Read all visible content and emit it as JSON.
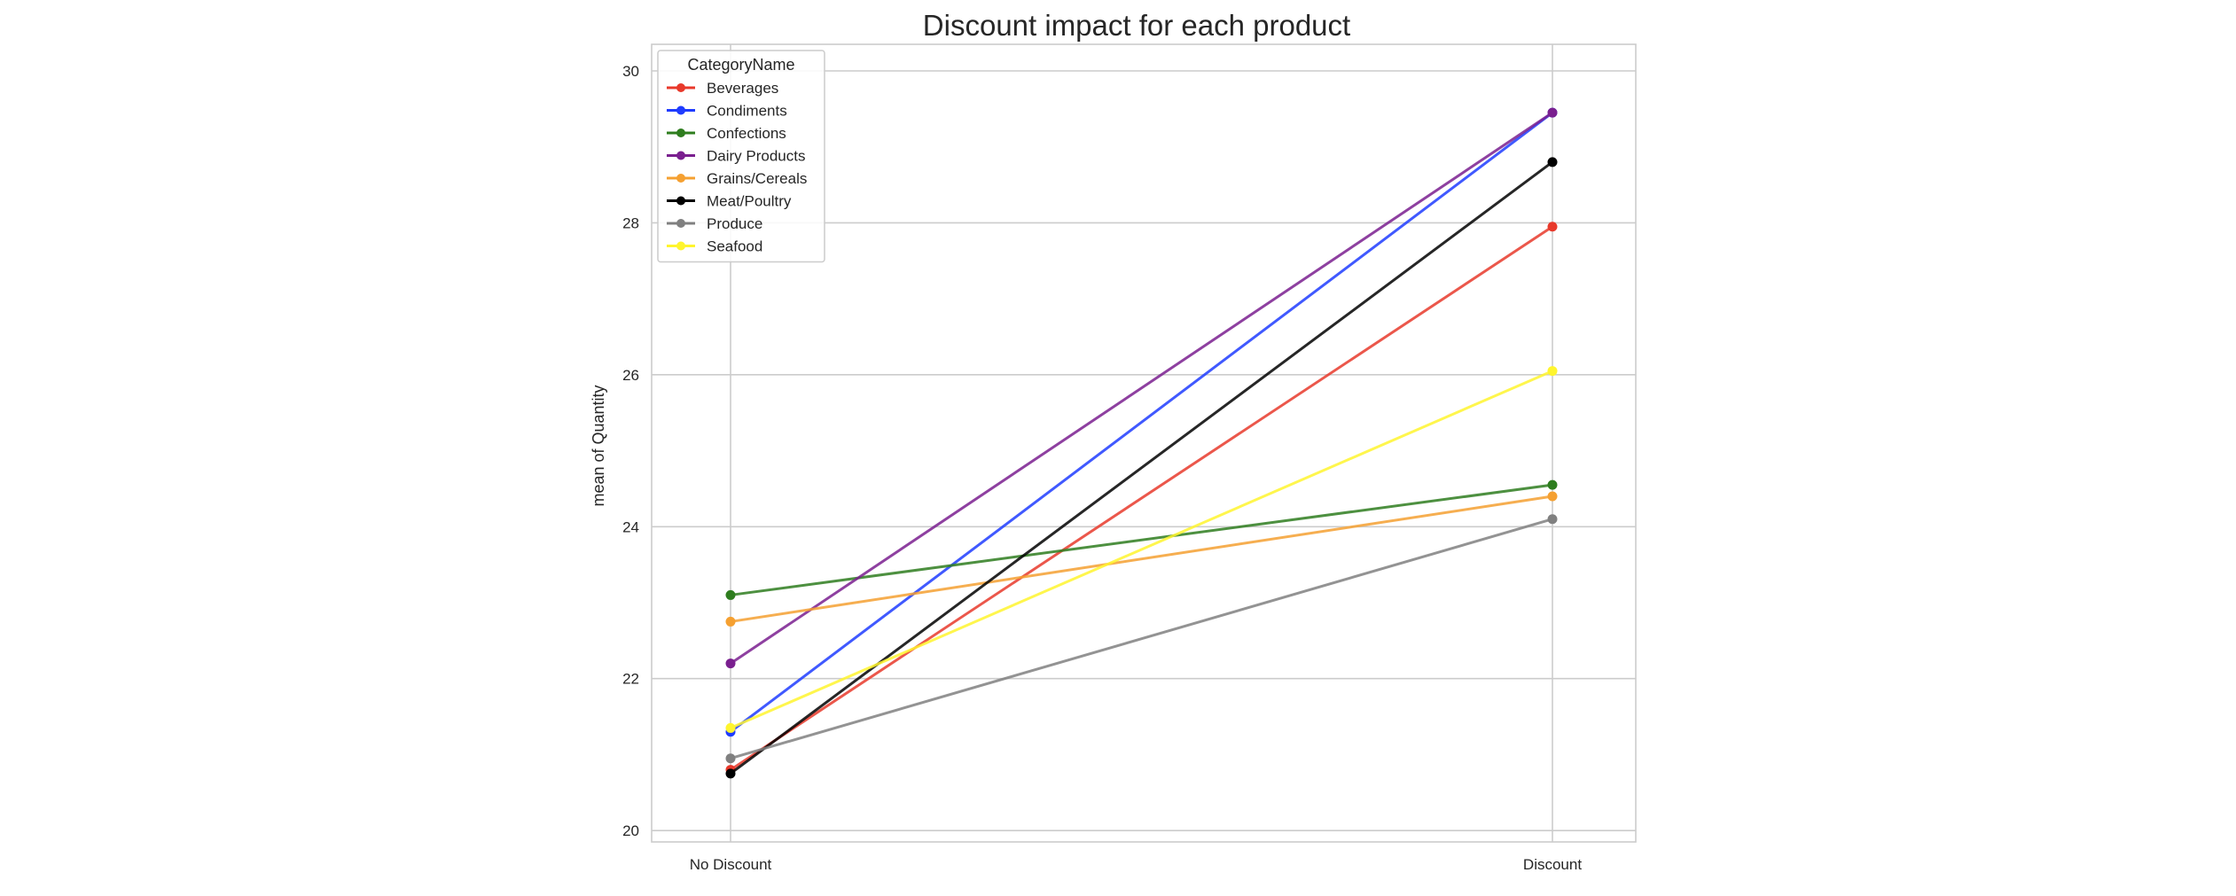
{
  "chart_data": {
    "type": "line",
    "title": "Discount impact for each product",
    "xlabel": "",
    "ylabel": "mean of Quantity",
    "categories": [
      "No Discount",
      "Discount"
    ],
    "ylim": [
      19.85,
      30.35
    ],
    "yticks": [
      20,
      22,
      24,
      26,
      28,
      30
    ],
    "grid": true,
    "legend": {
      "title": "CategoryName",
      "placement": "top-left"
    },
    "series": [
      {
        "name": "Beverages",
        "color": "#e8392b",
        "values": [
          20.8,
          27.95
        ]
      },
      {
        "name": "Condiments",
        "color": "#1f3cff",
        "values": [
          21.3,
          29.45
        ]
      },
      {
        "name": "Confections",
        "color": "#2e7d1e",
        "values": [
          23.1,
          24.55
        ]
      },
      {
        "name": "Dairy Products",
        "color": "#7a1f8f",
        "values": [
          22.2,
          29.45
        ]
      },
      {
        "name": "Grains/Cereals",
        "color": "#f5a031",
        "values": [
          22.75,
          24.4
        ]
      },
      {
        "name": "Meat/Poultry",
        "color": "#000000",
        "values": [
          20.75,
          28.8
        ]
      },
      {
        "name": "Produce",
        "color": "#808080",
        "values": [
          20.95,
          24.1
        ]
      },
      {
        "name": "Seafood",
        "color": "#fff52e",
        "values": [
          21.35,
          26.05
        ]
      }
    ]
  }
}
